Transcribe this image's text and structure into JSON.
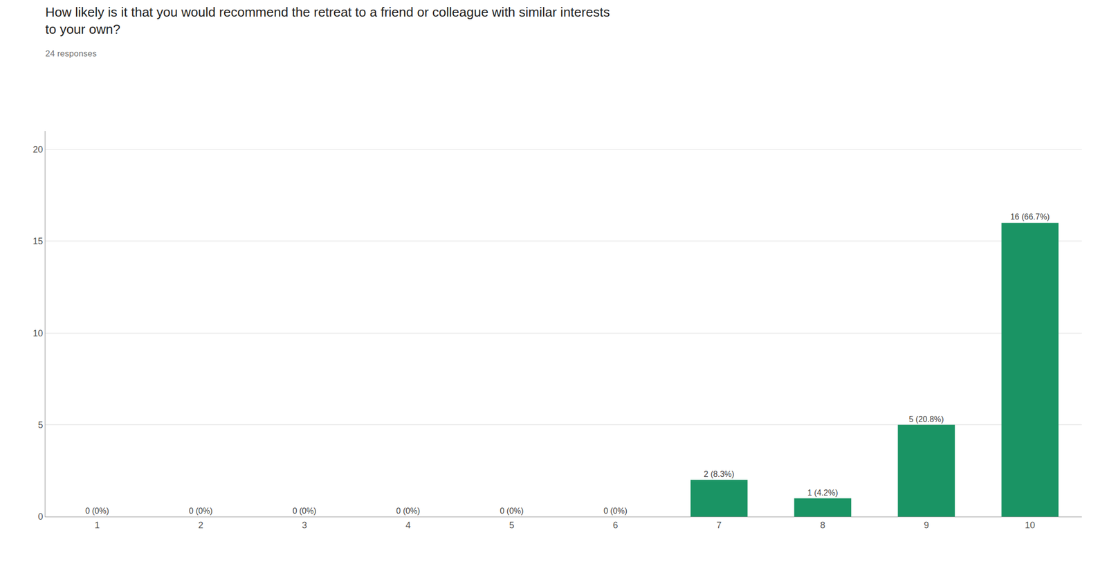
{
  "chart_data": {
    "type": "bar",
    "title": "How likely is it that you would recommend the retreat to a friend or colleague with similar interests\nto your own?",
    "subtitle": "24 responses",
    "categories": [
      1,
      2,
      3,
      4,
      5,
      6,
      7,
      8,
      9,
      10
    ],
    "values": [
      0,
      0,
      0,
      0,
      0,
      0,
      2,
      1,
      5,
      16
    ],
    "value_labels": [
      "0 (0%)",
      "0 (0%)",
      "0 (0%)",
      "0 (0%)",
      "0 (0%)",
      "0 (0%)",
      "2 (8.3%)",
      "1 (4.2%)",
      "5 (20.8%)",
      "16 (66.7%)"
    ],
    "data_labels": true,
    "color": "#1a9464",
    "ylim": [
      0,
      21
    ],
    "yticks": [
      0,
      5,
      10,
      15,
      20
    ],
    "grid": true
  }
}
